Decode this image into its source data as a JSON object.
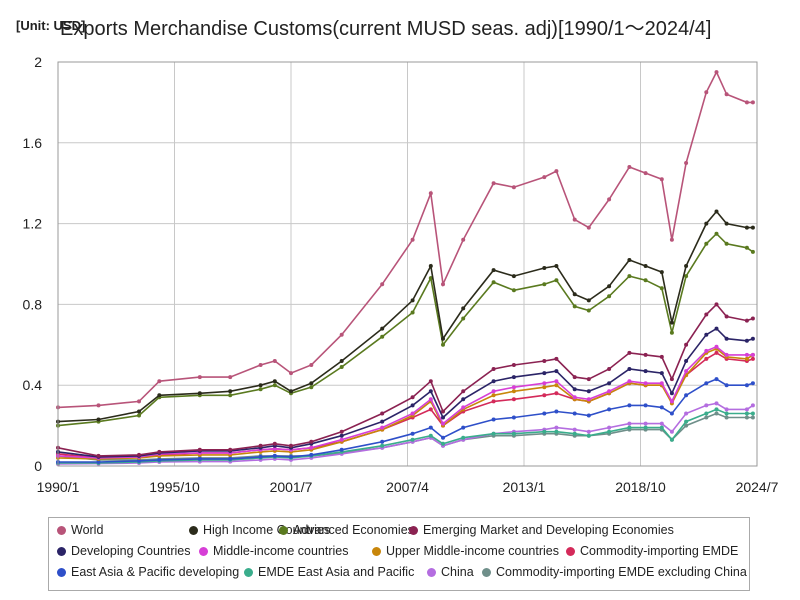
{
  "unit_label": "[Unit: USD]",
  "title": "Exports Merchandise Customs(current MUSD seas. adj)[1990/1～2024/4]",
  "chart_data": {
    "type": "line",
    "title": "Exports Merchandise Customs(current MUSD seas. adj)[1990/1～2024/4]",
    "xlabel": "",
    "ylabel": "",
    "unit": "[Unit: USD]",
    "ylim": [
      0,
      2
    ],
    "xlim": [
      1990.0,
      2024.5
    ],
    "grid": true,
    "legend_position": "bottom",
    "x_ticks": [
      {
        "label": "1990/1",
        "value": 1990.0
      },
      {
        "label": "1995/10",
        "value": 1995.75
      },
      {
        "label": "2001/7",
        "value": 2001.5
      },
      {
        "label": "2007/4",
        "value": 2007.25
      },
      {
        "label": "2013/1",
        "value": 2013.0
      },
      {
        "label": "2018/10",
        "value": 2018.75
      },
      {
        "label": "2024/7",
        "value": 2024.5
      }
    ],
    "y_ticks": [
      "0",
      "0.4",
      "0.8",
      "1.2",
      "1.6",
      "2"
    ],
    "x": [
      1990.0,
      1992.0,
      1994.0,
      1995.0,
      1997.0,
      1998.5,
      2000.0,
      2000.7,
      2001.5,
      2002.5,
      2004.0,
      2006.0,
      2007.5,
      2008.4,
      2009.0,
      2010.0,
      2011.5,
      2012.5,
      2014.0,
      2014.6,
      2015.5,
      2016.2,
      2017.2,
      2018.2,
      2019.0,
      2019.8,
      2020.3,
      2021.0,
      2022.0,
      2022.5,
      2023.0,
      2024.0,
      2024.3
    ],
    "series": [
      {
        "name": "World",
        "color": "#b85479",
        "values": [
          0.29,
          0.3,
          0.32,
          0.42,
          0.44,
          0.44,
          0.5,
          0.52,
          0.46,
          0.5,
          0.65,
          0.9,
          1.12,
          1.35,
          0.9,
          1.12,
          1.4,
          1.38,
          1.43,
          1.46,
          1.22,
          1.18,
          1.32,
          1.48,
          1.45,
          1.42,
          1.12,
          1.5,
          1.85,
          1.95,
          1.84,
          1.8,
          1.8
        ]
      },
      {
        "name": "High Income Countries",
        "color": "#2b2b1b",
        "values": [
          0.22,
          0.23,
          0.27,
          0.35,
          0.36,
          0.37,
          0.4,
          0.42,
          0.37,
          0.41,
          0.52,
          0.68,
          0.82,
          0.99,
          0.63,
          0.78,
          0.97,
          0.94,
          0.98,
          0.99,
          0.85,
          0.82,
          0.89,
          1.02,
          0.99,
          0.96,
          0.71,
          0.99,
          1.2,
          1.26,
          1.2,
          1.18,
          1.18
        ]
      },
      {
        "name": "Advanced Economies",
        "color": "#5a7a1f",
        "values": [
          0.2,
          0.22,
          0.25,
          0.34,
          0.35,
          0.35,
          0.38,
          0.4,
          0.36,
          0.39,
          0.49,
          0.64,
          0.76,
          0.93,
          0.6,
          0.73,
          0.91,
          0.87,
          0.9,
          0.92,
          0.79,
          0.77,
          0.84,
          0.94,
          0.92,
          0.88,
          0.66,
          0.94,
          1.1,
          1.15,
          1.1,
          1.08,
          1.06
        ]
      },
      {
        "name": "Emerging Market and Developing Economies",
        "color": "#8b2252",
        "values": [
          0.09,
          0.05,
          0.055,
          0.07,
          0.08,
          0.08,
          0.1,
          0.11,
          0.1,
          0.12,
          0.17,
          0.26,
          0.34,
          0.42,
          0.27,
          0.37,
          0.48,
          0.5,
          0.52,
          0.53,
          0.44,
          0.43,
          0.48,
          0.56,
          0.55,
          0.54,
          0.43,
          0.6,
          0.75,
          0.8,
          0.74,
          0.72,
          0.73
        ]
      },
      {
        "name": "Developing Countries",
        "color": "#2b2467",
        "values": [
          0.07,
          0.045,
          0.05,
          0.065,
          0.075,
          0.075,
          0.09,
          0.1,
          0.09,
          0.11,
          0.15,
          0.22,
          0.3,
          0.37,
          0.24,
          0.33,
          0.42,
          0.44,
          0.46,
          0.47,
          0.38,
          0.37,
          0.41,
          0.48,
          0.47,
          0.46,
          0.36,
          0.52,
          0.65,
          0.68,
          0.63,
          0.62,
          0.63
        ]
      },
      {
        "name": "Middle-income countries",
        "color": "#d63fd6",
        "values": [
          0.05,
          0.04,
          0.045,
          0.06,
          0.065,
          0.065,
          0.08,
          0.085,
          0.08,
          0.09,
          0.13,
          0.19,
          0.26,
          0.33,
          0.21,
          0.29,
          0.37,
          0.39,
          0.41,
          0.42,
          0.34,
          0.33,
          0.37,
          0.42,
          0.41,
          0.41,
          0.32,
          0.47,
          0.57,
          0.59,
          0.55,
          0.55,
          0.55
        ]
      },
      {
        "name": "Upper Middle-income countries",
        "color": "#c8860b",
        "values": [
          0.04,
          0.035,
          0.04,
          0.05,
          0.055,
          0.055,
          0.07,
          0.075,
          0.07,
          0.08,
          0.12,
          0.18,
          0.25,
          0.32,
          0.2,
          0.28,
          0.35,
          0.37,
          0.39,
          0.4,
          0.33,
          0.32,
          0.36,
          0.41,
          0.4,
          0.4,
          0.31,
          0.45,
          0.56,
          0.58,
          0.54,
          0.53,
          0.55
        ]
      },
      {
        "name": "Commodity-importing EMDE",
        "color": "#d42a5a",
        "values": [
          0.06,
          0.04,
          0.045,
          0.055,
          0.065,
          0.065,
          0.08,
          0.085,
          0.08,
          0.09,
          0.12,
          0.18,
          0.24,
          0.28,
          0.2,
          0.27,
          0.32,
          0.33,
          0.35,
          0.36,
          0.33,
          0.32,
          0.36,
          0.41,
          0.4,
          0.4,
          0.32,
          0.45,
          0.53,
          0.56,
          0.53,
          0.52,
          0.53
        ]
      },
      {
        "name": "East Asia & Pacific developing",
        "color": "#2e4fc9",
        "values": [
          0.02,
          0.02,
          0.025,
          0.03,
          0.035,
          0.035,
          0.045,
          0.05,
          0.045,
          0.055,
          0.08,
          0.12,
          0.16,
          0.19,
          0.14,
          0.19,
          0.23,
          0.24,
          0.26,
          0.27,
          0.26,
          0.25,
          0.28,
          0.3,
          0.3,
          0.29,
          0.26,
          0.35,
          0.41,
          0.43,
          0.4,
          0.4,
          0.41
        ]
      },
      {
        "name": "EMDE East Asia and Pacific",
        "color": "#3aad8c",
        "values": [
          0.015,
          0.015,
          0.02,
          0.025,
          0.03,
          0.03,
          0.04,
          0.045,
          0.04,
          0.05,
          0.07,
          0.1,
          0.13,
          0.15,
          0.11,
          0.14,
          0.16,
          0.16,
          0.17,
          0.17,
          0.16,
          0.15,
          0.17,
          0.19,
          0.19,
          0.19,
          0.13,
          0.22,
          0.26,
          0.28,
          0.26,
          0.26,
          0.26
        ]
      },
      {
        "name": "China",
        "color": "#b46de0",
        "values": [
          0.01,
          0.012,
          0.015,
          0.02,
          0.022,
          0.022,
          0.03,
          0.035,
          0.03,
          0.04,
          0.06,
          0.09,
          0.12,
          0.14,
          0.1,
          0.13,
          0.16,
          0.17,
          0.18,
          0.19,
          0.18,
          0.17,
          0.19,
          0.21,
          0.21,
          0.21,
          0.17,
          0.26,
          0.3,
          0.31,
          0.28,
          0.28,
          0.3
        ]
      },
      {
        "name": "Commodity-importing EMDE excluding China",
        "color": "#6f8f8a",
        "values": [
          0.05,
          0.03,
          0.03,
          0.035,
          0.04,
          0.04,
          0.05,
          0.05,
          0.05,
          0.05,
          0.065,
          0.09,
          0.12,
          0.14,
          0.1,
          0.13,
          0.15,
          0.15,
          0.16,
          0.16,
          0.15,
          0.15,
          0.16,
          0.18,
          0.18,
          0.18,
          0.13,
          0.2,
          0.24,
          0.26,
          0.24,
          0.24,
          0.24
        ]
      }
    ]
  }
}
